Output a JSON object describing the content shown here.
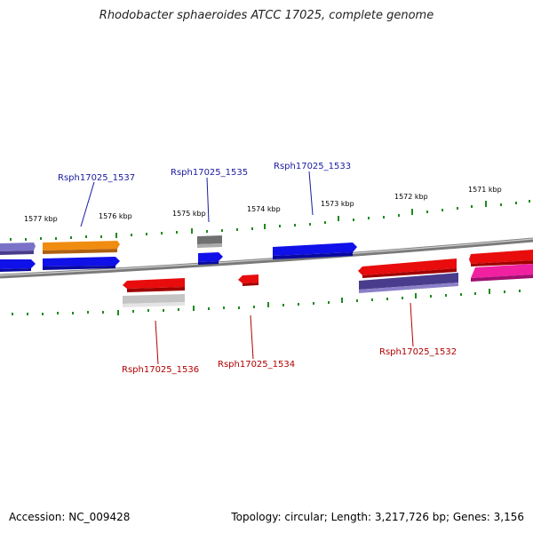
{
  "title": "Rhodobacter sphaeroides ATCC 17025, complete genome",
  "footer": {
    "accession": "Accession: NC_009428",
    "topology": "Topology: circular; Length: 3,217,726 bp; Genes: 3,156"
  },
  "scale_labels": [
    "1577 kbp",
    "1576 kbp",
    "1575 kbp",
    "1574 kbp",
    "1573 kbp",
    "1572 kbp",
    "1571 kbp"
  ],
  "gene_labels_top": [
    "Rsph17025_1537",
    "Rsph17025_1535",
    "Rsph17025_1533"
  ],
  "gene_labels_bottom": [
    "Rsph17025_1536",
    "Rsph17025_1534",
    "Rsph17025_1532"
  ],
  "colors": {
    "top_label": "#1a1aa0",
    "bottom_label": "#b00000",
    "tick": "#1f8a1f",
    "backbone": "#808080",
    "blue": "#1010e8",
    "orange": "#f08c10",
    "red": "#e80c0c",
    "gray": "#707070",
    "lightgray": "#c4c4c4",
    "lavender": "#7a72c8",
    "indigo": "#4a3c8c",
    "magenta": "#f020a0"
  }
}
